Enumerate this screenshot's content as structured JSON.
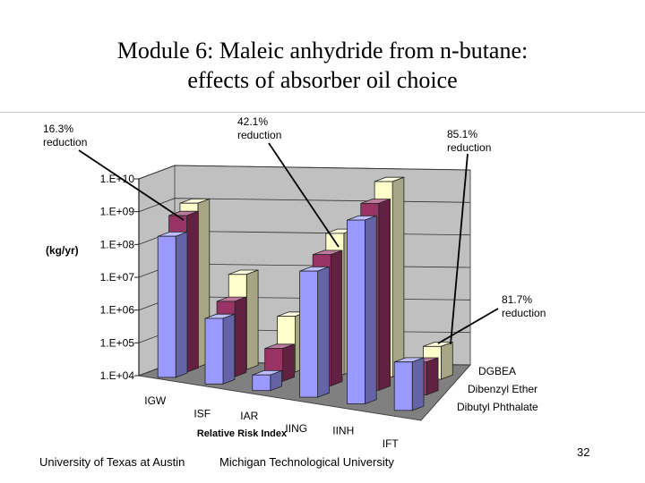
{
  "slide": {
    "title_line1": "Module 6: Maleic anhydride from n-butane:",
    "title_line2": "effects of absorber oil choice",
    "page_number": "32"
  },
  "footer": {
    "left": "University of Texas at Austin",
    "center": "Michigan Technological University"
  },
  "colors": {
    "dgbea": "#9999ff",
    "dibenzyl_ether": "#993366",
    "dibutyl_phthalate": "#ffffcc",
    "wall": "#c0c0c0",
    "floor": "#808080"
  },
  "chart_data": {
    "type": "bar",
    "title": "",
    "xlabel": "Relative Risk Index",
    "ylabel": "(kg/yr)",
    "y_scale": "log",
    "ylim": [
      10000,
      10000000000
    ],
    "y_ticks": [
      "1.E+04",
      "1.E+05",
      "1.E+06",
      "1.E+07",
      "1.E+08",
      "1.E+09",
      "1.E+10"
    ],
    "categories": [
      "IGW",
      "ISF",
      "IAR",
      "IING",
      "IINH",
      "IFT"
    ],
    "series": [
      {
        "name": "DGBEA",
        "values": [
          200000000,
          1000000,
          30000,
          70000000,
          4000000000,
          300000
        ]
      },
      {
        "name": "Dibenzyl Ether",
        "values": [
          600000000,
          2000000,
          100000,
          100000000,
          5000000000,
          100000
        ]
      },
      {
        "name": "Dibutyl Phthalate",
        "values": [
          1000000000,
          8000000,
          500000,
          200000000,
          9000000000,
          100000
        ]
      }
    ],
    "annotations": [
      {
        "text_line1": "16.3%",
        "text_line2": "reduction"
      },
      {
        "text_line1": "42.1%",
        "text_line2": "reduction"
      },
      {
        "text_line1": "85.1%",
        "text_line2": "reduction"
      },
      {
        "text_line1": "81.7%",
        "text_line2": "reduction"
      }
    ],
    "grid": true,
    "legend": "right"
  }
}
